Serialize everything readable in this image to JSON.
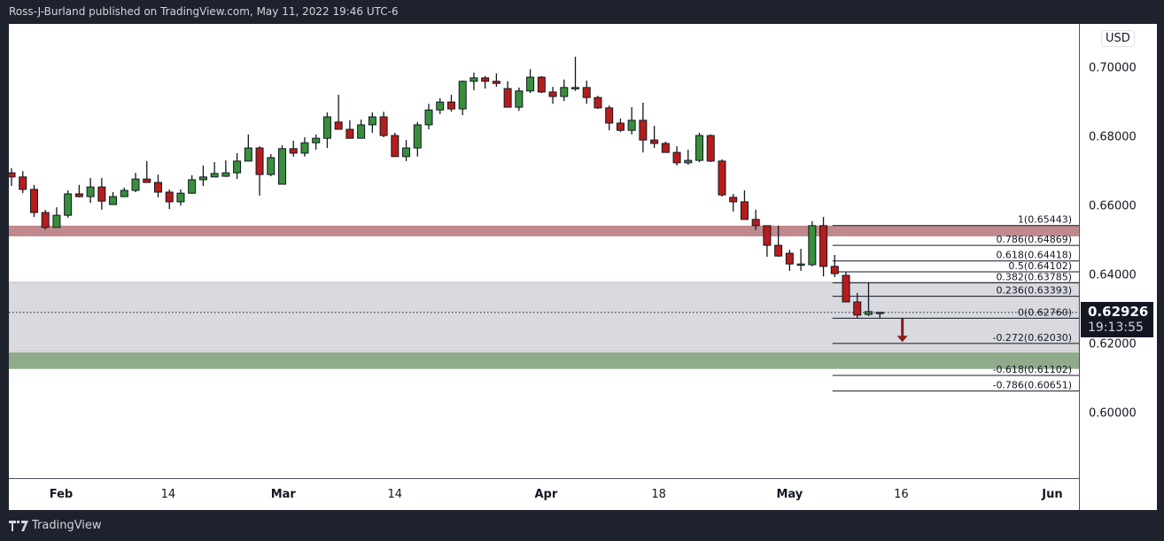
{
  "header": {
    "text": "Ross-J-Burland published on TradingView.com, May 11, 2022 19:46 UTC-6"
  },
  "footer": {
    "brand": "TradingView"
  },
  "colors": {
    "up": "#388e3c",
    "down": "#b71c1c",
    "resistance": "#c0898d",
    "gray_zone": "#d9dadf",
    "support": "#8fab8c",
    "arrow": "#8b1a1a"
  },
  "chart_data": {
    "type": "candlestick",
    "currency": "USD",
    "ylim": [
      0.58128,
      0.71282
    ],
    "y_ticks": [
      {
        "value": 0.7,
        "label": "0.70000"
      },
      {
        "value": 0.68,
        "label": "0.68000"
      },
      {
        "value": 0.66,
        "label": "0.66000"
      },
      {
        "value": 0.64,
        "label": "0.64000"
      },
      {
        "value": 0.62,
        "label": "0.62000"
      },
      {
        "value": 0.6,
        "label": "0.60000"
      }
    ],
    "x_ticks": [
      {
        "bar": 4.4,
        "label": "Feb",
        "bold": true
      },
      {
        "bar": 13.9,
        "label": "14",
        "bold": false
      },
      {
        "bar": 24.1,
        "label": "Mar",
        "bold": true
      },
      {
        "bar": 34.0,
        "label": "14",
        "bold": false
      },
      {
        "bar": 47.4,
        "label": "Apr",
        "bold": true
      },
      {
        "bar": 57.4,
        "label": "18",
        "bold": false
      },
      {
        "bar": 69.0,
        "label": "May",
        "bold": true
      },
      {
        "bar": 78.9,
        "label": "16",
        "bold": false
      },
      {
        "bar": 92.3,
        "label": "Jun",
        "bold": true
      }
    ],
    "bars_visible": 95,
    "ohlc": [
      [
        0.6697,
        0.671,
        0.6659,
        0.6685
      ],
      [
        0.6685,
        0.6702,
        0.6638,
        0.6649
      ],
      [
        0.6649,
        0.6662,
        0.6569,
        0.6582
      ],
      [
        0.6582,
        0.659,
        0.6533,
        0.6539
      ],
      [
        0.6539,
        0.6597,
        0.6539,
        0.6574
      ],
      [
        0.6574,
        0.6646,
        0.6567,
        0.6636
      ],
      [
        0.6636,
        0.6662,
        0.6626,
        0.6628
      ],
      [
        0.6628,
        0.6682,
        0.661,
        0.6656
      ],
      [
        0.6656,
        0.6682,
        0.659,
        0.6615
      ],
      [
        0.6605,
        0.6641,
        0.6605,
        0.6628
      ],
      [
        0.6628,
        0.6654,
        0.6628,
        0.6646
      ],
      [
        0.6646,
        0.6697,
        0.6641,
        0.6679
      ],
      [
        0.6679,
        0.6731,
        0.6669,
        0.6669
      ],
      [
        0.6669,
        0.6692,
        0.6626,
        0.6641
      ],
      [
        0.6641,
        0.6649,
        0.6592,
        0.6613
      ],
      [
        0.6613,
        0.6649,
        0.6602,
        0.6638
      ],
      [
        0.6638,
        0.669,
        0.6636,
        0.6677
      ],
      [
        0.6677,
        0.6718,
        0.6659,
        0.6685
      ],
      [
        0.6685,
        0.6728,
        0.6685,
        0.6695
      ],
      [
        0.6687,
        0.6733,
        0.6685,
        0.6697
      ],
      [
        0.6697,
        0.6754,
        0.6679,
        0.6731
      ],
      [
        0.6731,
        0.6808,
        0.6731,
        0.6769
      ],
      [
        0.6769,
        0.6774,
        0.6631,
        0.6692
      ],
      [
        0.6692,
        0.6751,
        0.6687,
        0.6741
      ],
      [
        0.6664,
        0.6777,
        0.6664,
        0.6767
      ],
      [
        0.6767,
        0.679,
        0.6744,
        0.6754
      ],
      [
        0.6754,
        0.68,
        0.6744,
        0.6784
      ],
      [
        0.6784,
        0.6808,
        0.6764,
        0.6797
      ],
      [
        0.6797,
        0.6872,
        0.6769,
        0.6859
      ],
      [
        0.6844,
        0.6923,
        0.6823,
        0.6823
      ],
      [
        0.6823,
        0.6849,
        0.6797,
        0.6797
      ],
      [
        0.6797,
        0.6851,
        0.6797,
        0.6836
      ],
      [
        0.6836,
        0.6872,
        0.6813,
        0.6859
      ],
      [
        0.6859,
        0.6874,
        0.68,
        0.6805
      ],
      [
        0.6805,
        0.6813,
        0.6744,
        0.6744
      ],
      [
        0.6744,
        0.6792,
        0.6731,
        0.6769
      ],
      [
        0.6769,
        0.6844,
        0.6744,
        0.6836
      ],
      [
        0.6836,
        0.6897,
        0.6823,
        0.6879
      ],
      [
        0.6879,
        0.6913,
        0.6867,
        0.6902
      ],
      [
        0.6902,
        0.6923,
        0.6874,
        0.6882
      ],
      [
        0.6882,
        0.6964,
        0.6864,
        0.6962
      ],
      [
        0.6962,
        0.6987,
        0.6936,
        0.6972
      ],
      [
        0.6972,
        0.6977,
        0.6941,
        0.6962
      ],
      [
        0.6962,
        0.6985,
        0.6946,
        0.6956
      ],
      [
        0.6941,
        0.6962,
        0.6887,
        0.6887
      ],
      [
        0.6887,
        0.6944,
        0.6877,
        0.6934
      ],
      [
        0.6934,
        0.6997,
        0.6928,
        0.6974
      ],
      [
        0.6974,
        0.6977,
        0.6928,
        0.6931
      ],
      [
        0.6931,
        0.6946,
        0.6897,
        0.6918
      ],
      [
        0.6918,
        0.6967,
        0.6905,
        0.6944
      ],
      [
        0.6944,
        0.7033,
        0.6934,
        0.6944
      ],
      [
        0.6944,
        0.6964,
        0.6897,
        0.6915
      ],
      [
        0.6915,
        0.692,
        0.6882,
        0.6885
      ],
      [
        0.6885,
        0.6892,
        0.682,
        0.6841
      ],
      [
        0.6841,
        0.6854,
        0.6815,
        0.682
      ],
      [
        0.682,
        0.6887,
        0.6808,
        0.6849
      ],
      [
        0.6849,
        0.69,
        0.6756,
        0.6792
      ],
      [
        0.6792,
        0.6833,
        0.6769,
        0.6782
      ],
      [
        0.6782,
        0.6787,
        0.6756,
        0.6756
      ],
      [
        0.6756,
        0.6774,
        0.6718,
        0.6726
      ],
      [
        0.6726,
        0.6764,
        0.672,
        0.6733
      ],
      [
        0.6733,
        0.6813,
        0.6728,
        0.6805
      ],
      [
        0.6805,
        0.6808,
        0.6728,
        0.6731
      ],
      [
        0.6731,
        0.6736,
        0.6628,
        0.6633
      ],
      [
        0.6626,
        0.6636,
        0.6585,
        0.6613
      ],
      [
        0.6613,
        0.6646,
        0.6562,
        0.6562
      ],
      [
        0.6562,
        0.659,
        0.6531,
        0.6544
      ],
      [
        0.6544,
        0.6544,
        0.6454,
        0.6487
      ],
      [
        0.6487,
        0.6544,
        0.6454,
        0.6456
      ],
      [
        0.6464,
        0.6474,
        0.6413,
        0.6433
      ],
      [
        0.6433,
        0.6477,
        0.6413,
        0.6433
      ],
      [
        0.6431,
        0.6557,
        0.6426,
        0.6544
      ],
      [
        0.6544,
        0.6569,
        0.6397,
        0.6426
      ],
      [
        0.6426,
        0.6459,
        0.6395,
        0.6405
      ],
      [
        0.64,
        0.641,
        0.6323,
        0.6323
      ],
      [
        0.6323,
        0.6349,
        0.6277,
        0.6285
      ],
      [
        0.6287,
        0.6379,
        0.6282,
        0.6295
      ],
      [
        0.6293,
        0.6293,
        0.6277,
        0.6293
      ]
    ],
    "zones": [
      {
        "name": "resistance-zone",
        "from": 0.6513,
        "to": 0.6544,
        "color": "#c0898d"
      },
      {
        "name": "gray-zone",
        "from": 0.618,
        "to": 0.638,
        "color": "#d9dadf"
      },
      {
        "name": "support-zone",
        "from": 0.6129,
        "to": 0.6177,
        "color": "#8fab8c"
      }
    ],
    "fib": {
      "start_bar": 72.8,
      "levels": [
        {
          "ratio": "1",
          "price": 0.65443
        },
        {
          "ratio": "0.786",
          "price": 0.64869
        },
        {
          "ratio": "0.618",
          "price": 0.64418
        },
        {
          "ratio": "0.5",
          "price": 0.64102
        },
        {
          "ratio": "0.382",
          "price": 0.63785
        },
        {
          "ratio": "0.236",
          "price": 0.63393
        },
        {
          "ratio": "0",
          "price": 0.6276
        },
        {
          "ratio": "-0.272",
          "price": 0.6203
        },
        {
          "ratio": "-0.618",
          "price": 0.61102
        },
        {
          "ratio": "-0.786",
          "price": 0.60651
        }
      ]
    },
    "arrow": {
      "bar": 79,
      "from": 0.6275,
      "to": 0.6207,
      "direction": "down"
    },
    "current": {
      "price": 0.62926,
      "label": "0.62926",
      "countdown": "19:13:55"
    }
  }
}
